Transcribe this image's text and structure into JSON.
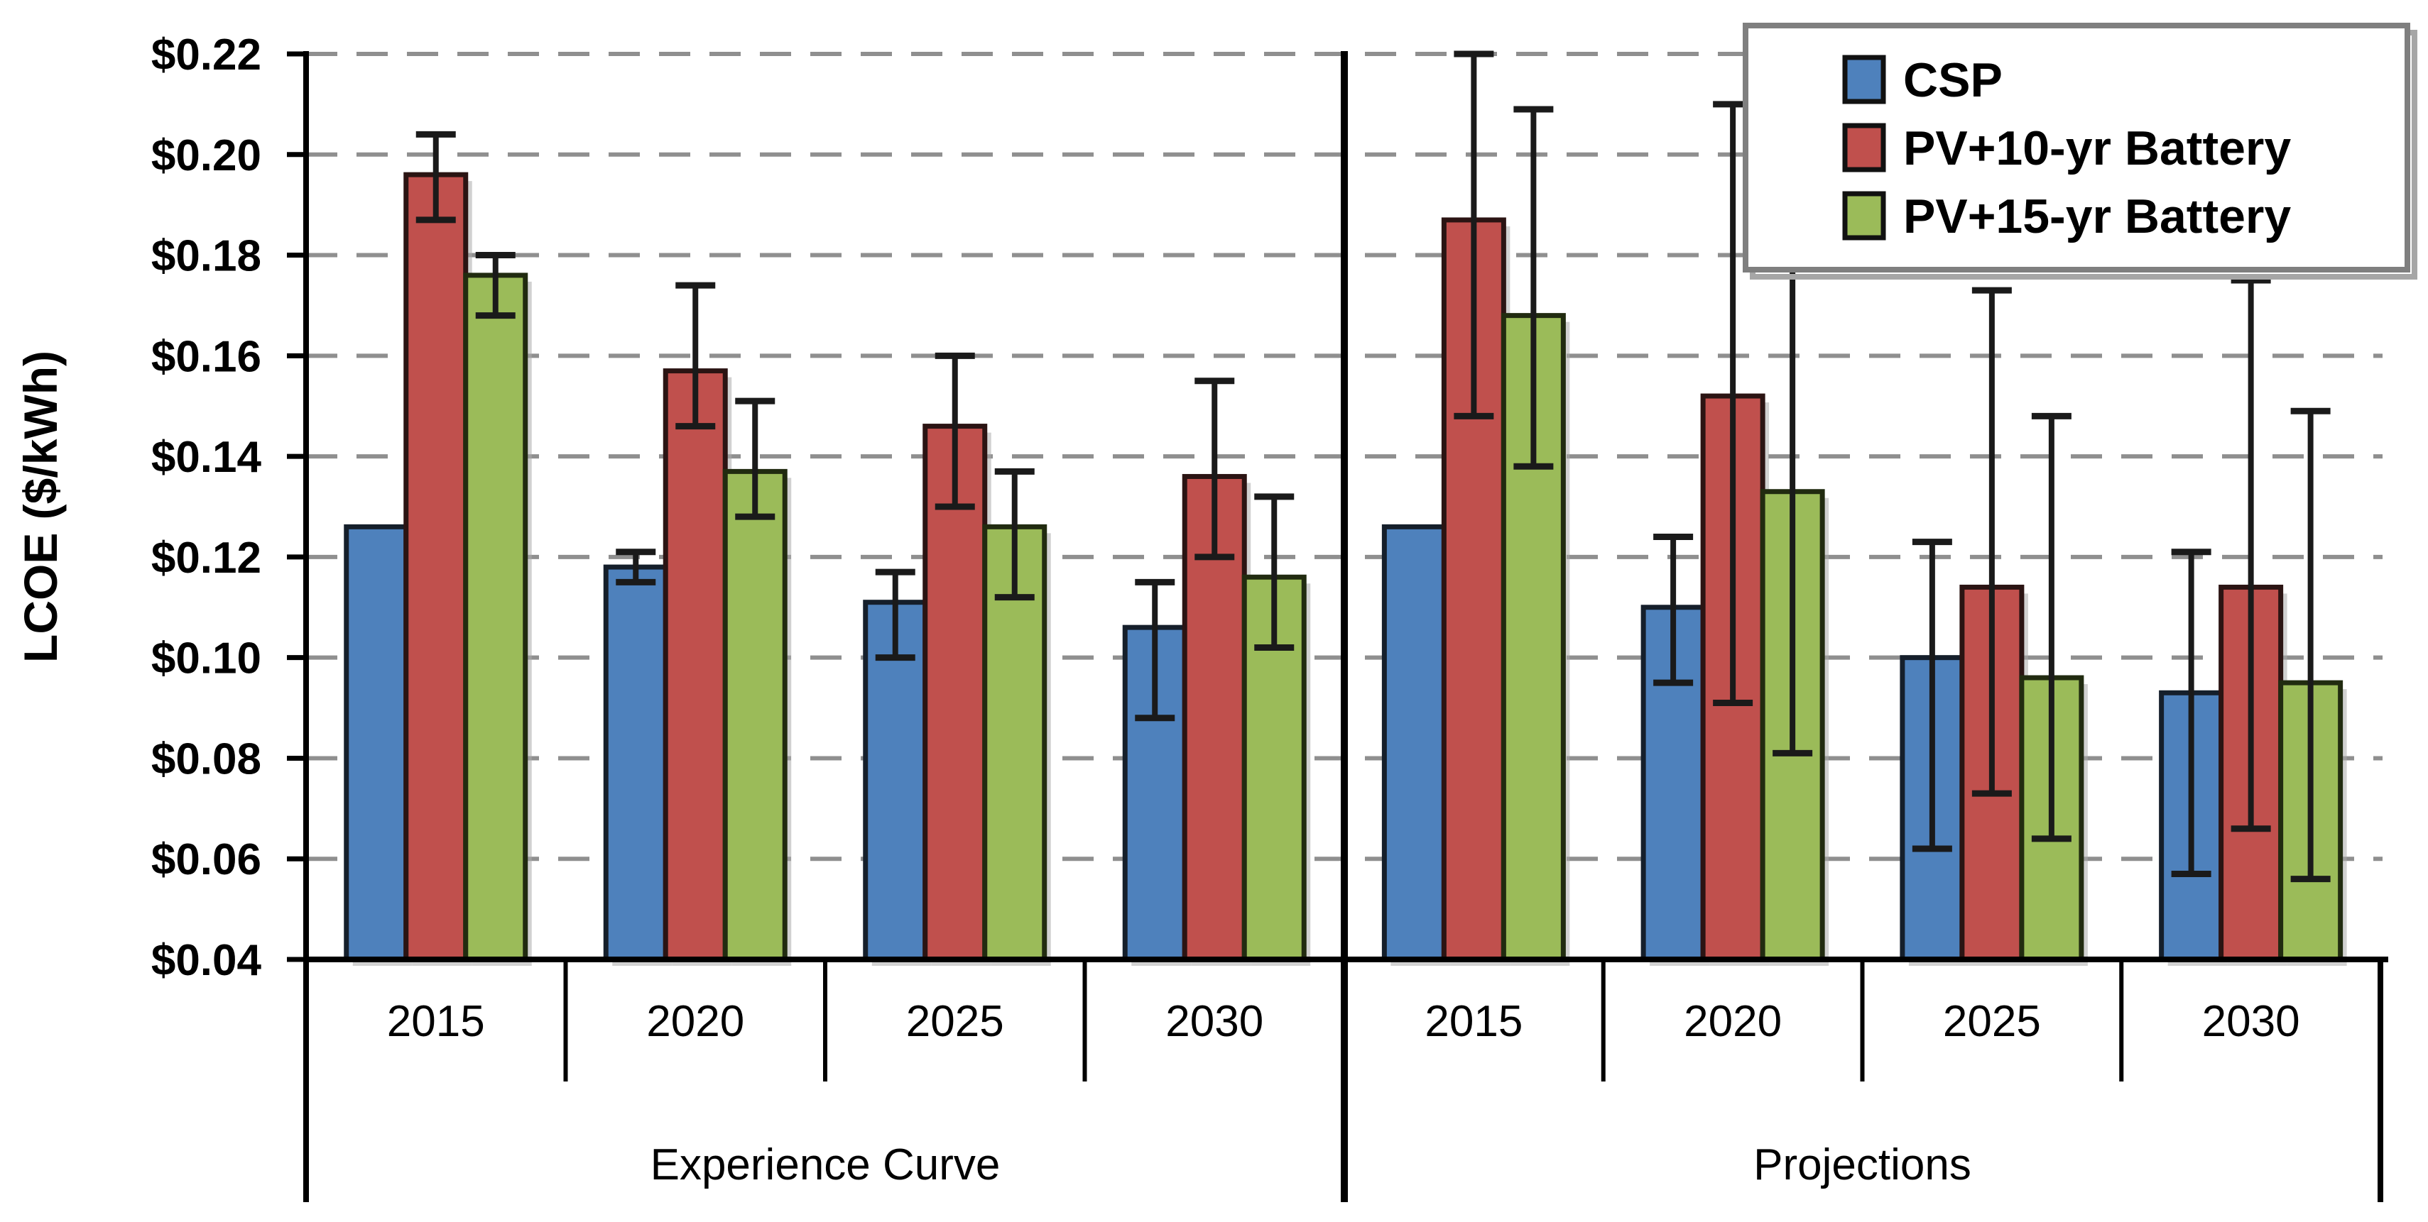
{
  "chart_data": {
    "type": "bar",
    "title": "",
    "ylabel": "LCOE ($/kWh)",
    "xlabel": "",
    "y_axis": {
      "min": 0.04,
      "max": 0.22,
      "step": 0.02,
      "tick_labels": [
        "$0.04",
        "$0.06",
        "$0.08",
        "$0.10",
        "$0.12",
        "$0.14",
        "$0.16",
        "$0.18",
        "$0.20",
        "$0.22"
      ]
    },
    "grid": "dashed horizontal gray lines",
    "panels": [
      {
        "key": "experience_curve",
        "label": "Experience Curve",
        "years": [
          "2015",
          "2020",
          "2025",
          "2030"
        ]
      },
      {
        "key": "projections",
        "label": "Projections",
        "years": [
          "2015",
          "2020",
          "2025",
          "2030"
        ]
      }
    ],
    "series": [
      {
        "name": "CSP",
        "color": "#4E81BC",
        "border_color": "#151f2b",
        "values": {
          "experience_curve": [
            0.126,
            0.118,
            0.111,
            0.106
          ],
          "projections": [
            0.126,
            0.11,
            0.1,
            0.093
          ]
        },
        "error_low": {
          "experience_curve": [
            null,
            0.115,
            0.1,
            0.088
          ],
          "projections": [
            null,
            0.095,
            0.062,
            0.057
          ]
        },
        "error_high": {
          "experience_curve": [
            null,
            0.121,
            0.117,
            0.115
          ],
          "projections": [
            null,
            0.124,
            0.123,
            0.121
          ]
        }
      },
      {
        "name": "PV+10-yr Battery",
        "color": "#C0504D",
        "border_color": "#2b1413",
        "values": {
          "experience_curve": [
            0.196,
            0.157,
            0.146,
            0.136
          ],
          "projections": [
            0.187,
            0.152,
            0.114,
            0.114
          ]
        },
        "error_low": {
          "experience_curve": [
            0.187,
            0.146,
            0.13,
            0.12
          ],
          "projections": [
            0.148,
            0.091,
            0.073,
            0.066
          ]
        },
        "error_high": {
          "experience_curve": [
            0.204,
            0.174,
            0.16,
            0.155
          ],
          "projections": [
            0.22,
            0.21,
            0.173,
            0.175
          ]
        }
      },
      {
        "name": "PV+15-yr Battery",
        "color": "#9BBB59",
        "border_color": "#212b10",
        "values": {
          "experience_curve": [
            0.176,
            0.137,
            0.126,
            0.116
          ],
          "projections": [
            0.168,
            0.133,
            0.096,
            0.095
          ]
        },
        "error_low": {
          "experience_curve": [
            0.168,
            0.128,
            0.112,
            0.102
          ],
          "projections": [
            0.138,
            0.081,
            0.064,
            0.056
          ]
        },
        "error_high": {
          "experience_curve": [
            0.18,
            0.151,
            0.137,
            0.132
          ],
          "projections": [
            0.209,
            0.188,
            0.148,
            0.149
          ]
        }
      }
    ],
    "legend": {
      "entries": [
        "CSP",
        "PV+10-yr Battery",
        "PV+15-yr Battery"
      ],
      "position": "top-right",
      "background": "#ffffff",
      "border_color": "#7f7f7f"
    },
    "colors": {
      "gridline": "#8f8f8f",
      "axis": "#000000",
      "error_bar": "#1a1a1a",
      "bar_shadow": "#ababab"
    }
  }
}
